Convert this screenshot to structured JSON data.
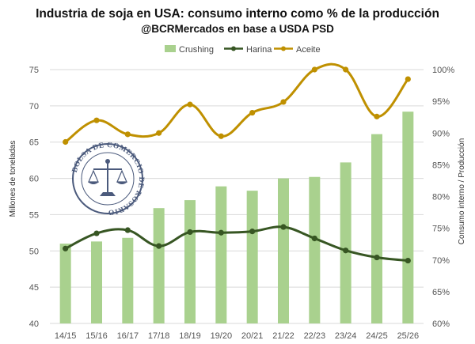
{
  "chart_data": {
    "type": "bar",
    "title": "Industria de soja en USA: consumo interno como % de la producción",
    "subtitle": "@BCRMercados en base a USDA PSD",
    "ylabel": "Millones de toneladas",
    "y2label": "Consumo interno / Producción",
    "ylim": [
      40,
      75
    ],
    "y2lim": [
      0.6,
      1.0
    ],
    "yticks": [
      "40",
      "45",
      "50",
      "55",
      "60",
      "65",
      "70",
      "75"
    ],
    "y2ticks": [
      "60%",
      "65%",
      "70%",
      "75%",
      "80%",
      "85%",
      "90%",
      "95%",
      "100%"
    ],
    "grid": true,
    "legend_position": "top-center",
    "categories": [
      "14/15",
      "15/16",
      "16/17",
      "17/18",
      "18/19",
      "19/20",
      "20/21",
      "21/22",
      "22/23",
      "23/24",
      "24/25",
      "25/26"
    ],
    "series": [
      {
        "name": "Crushing",
        "type": "bar",
        "axis": "left",
        "color": "#a9d18e",
        "values": [
          51.0,
          51.3,
          51.8,
          55.9,
          57.0,
          58.9,
          58.3,
          60.0,
          60.2,
          62.2,
          66.1,
          69.2
        ]
      },
      {
        "name": "Harina",
        "type": "line",
        "axis": "right",
        "color": "#375623",
        "values": [
          0.718,
          0.742,
          0.747,
          0.722,
          0.744,
          0.743,
          0.745,
          0.752,
          0.734,
          0.715,
          0.704,
          0.699
        ]
      },
      {
        "name": "Aceite",
        "type": "line",
        "axis": "right",
        "color": "#bf9000",
        "values": [
          0.886,
          0.92,
          0.898,
          0.9,
          0.945,
          0.895,
          0.932,
          0.949,
          1.0,
          1.0,
          0.926,
          0.985
        ]
      }
    ]
  },
  "watermark": {
    "text": "BOLSA DE COMERCIO DE ROSARIO"
  }
}
